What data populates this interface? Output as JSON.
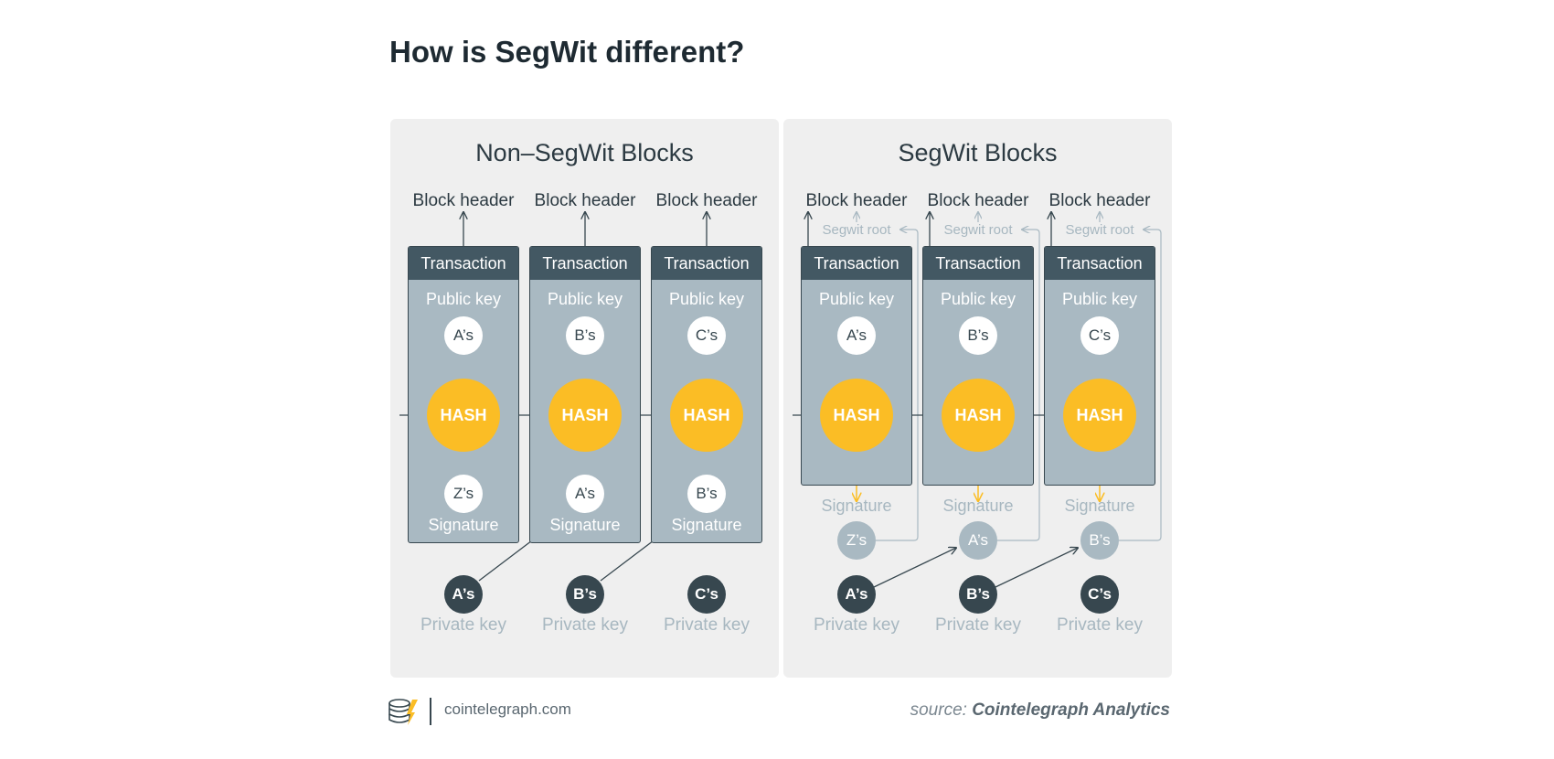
{
  "title": "How is SegWit different?",
  "colors": {
    "hash": "#fbbd25",
    "tx_header": "#435863",
    "tx_body": "#a9b9c2",
    "dark": "#37474f",
    "faded_text": "#a7b7c0",
    "panel_bg": "#efefef"
  },
  "labels": {
    "block_header": "Block header",
    "transaction": "Transaction",
    "public_key": "Public key",
    "hash": "HASH",
    "signature": "Signature",
    "private_key": "Private key",
    "segwit_root": "Segwit root"
  },
  "non_segwit": {
    "title": "Non–SegWit Blocks",
    "columns": [
      {
        "public_key": "A’s",
        "signature_key": "Z’s",
        "private_key": "A’s"
      },
      {
        "public_key": "B’s",
        "signature_key": "A’s",
        "private_key": "B’s"
      },
      {
        "public_key": "C’s",
        "signature_key": "B’s",
        "private_key": "C’s"
      }
    ]
  },
  "segwit": {
    "title": "SegWit Blocks",
    "columns": [
      {
        "public_key": "A’s",
        "signature_key": "Z’s",
        "private_key": "A’s"
      },
      {
        "public_key": "B’s",
        "signature_key": "A’s",
        "private_key": "B’s"
      },
      {
        "public_key": "C’s",
        "signature_key": "B’s",
        "private_key": "C’s"
      }
    ]
  },
  "footer": {
    "site": "cointelegraph.com",
    "source_prefix": "source:",
    "source_name": "Cointelegraph Analytics"
  }
}
